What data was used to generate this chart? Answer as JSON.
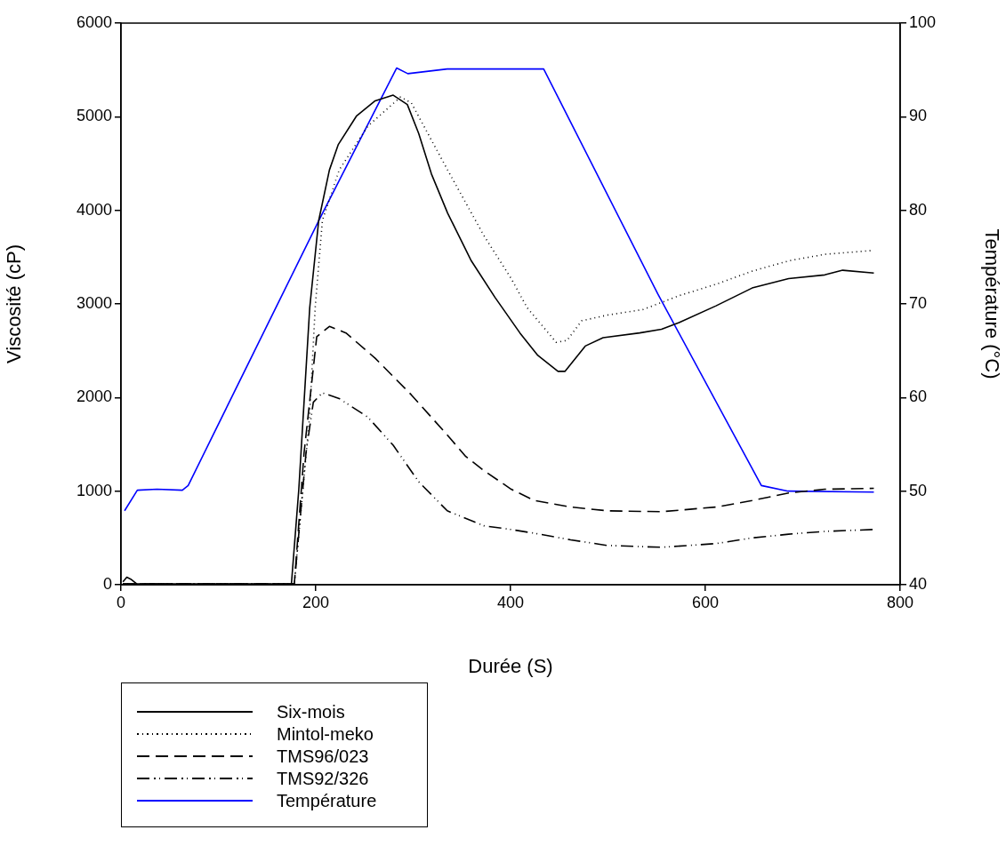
{
  "chart_data": {
    "type": "line",
    "xlabel": "Durée (S)",
    "ylabel": "Viscosité (cP)",
    "y2label": "Température (°C)",
    "xlim": [
      0,
      800
    ],
    "xticks": [
      0,
      200,
      400,
      600,
      800
    ],
    "ylim": [
      0,
      6000
    ],
    "yticks": [
      0,
      1000,
      2000,
      3000,
      4000,
      5000,
      6000
    ],
    "y2lim": [
      40,
      100
    ],
    "y2ticks": [
      40,
      50,
      60,
      70,
      80,
      90,
      100
    ],
    "grid": false,
    "legend": "bottom left",
    "marker": "none",
    "series": [
      {
        "name": "Six-mois",
        "color": "#000000",
        "line_style": "solid",
        "x": [
          2,
          6,
          10,
          16,
          40,
          100,
          175,
          182.6,
          193.8,
          203,
          214,
          223,
          242,
          261,
          279.5,
          294,
          305.7,
          318.7,
          335.4,
          359.7,
          384,
          409.6,
          428,
          448.7,
          456,
          476.7,
          495,
          532.6,
          555,
          573,
          611,
          648,
          685.5,
          722.6,
          741,
          773
        ],
        "values": [
          30,
          80,
          60,
          10,
          10,
          10,
          10,
          1020,
          2960,
          3890,
          4430,
          4700,
          5010,
          5170,
          5230,
          5130,
          4820,
          4390,
          3970,
          3460,
          3070,
          2690,
          2450,
          2280,
          2280,
          2550,
          2640,
          2690,
          2730,
          2800,
          2980,
          3170,
          3270,
          3310,
          3360,
          3330
        ]
      },
      {
        "name": "Mintol-meko",
        "color": "#000000",
        "line_style": "dotted",
        "x": [
          2,
          10,
          40,
          100,
          178,
          193.6,
          199.4,
          206.8,
          224,
          253.5,
          287,
          298,
          335.4,
          372.6,
          400.7,
          417,
          446.8,
          458,
          473,
          499,
          536,
          573.5,
          611,
          648,
          685.5,
          722.5,
          771
        ],
        "values": [
          10,
          10,
          10,
          10,
          10,
          1790,
          2960,
          3890,
          4430,
          4900,
          5210,
          5150,
          4430,
          3730,
          3270,
          2960,
          2590,
          2610,
          2820,
          2880,
          2940,
          3090,
          3210,
          3350,
          3460,
          3530,
          3570
        ]
      },
      {
        "name": "TMS96/023",
        "color": "#000000",
        "line_style": "dashed",
        "x": [
          2,
          10,
          40,
          100,
          178,
          188,
          201,
          214,
          231,
          261,
          298,
          335,
          354,
          372.6,
          400.7,
          424.5,
          461.7,
          499,
          555,
          611,
          648,
          685.5,
          722.5,
          773
        ],
        "values": [
          10,
          10,
          10,
          10,
          10,
          1410,
          2650,
          2760,
          2690,
          2420,
          2030,
          1600,
          1370,
          1220,
          1020,
          900,
          830,
          790,
          780,
          830,
          900,
          980,
          1020,
          1030
        ]
      },
      {
        "name": "TMS92/326",
        "color": "#000000",
        "line_style": "dashdot",
        "x": [
          2,
          10,
          40,
          100,
          178,
          190,
          197.5,
          206.8,
          224,
          253.5,
          279.5,
          305.7,
          335,
          372.6,
          400.7,
          424.5,
          461.7,
          499,
          555,
          611,
          648,
          685.5,
          722.5,
          773
        ],
        "values": [
          10,
          10,
          10,
          10,
          10,
          1410,
          1950,
          2050,
          1990,
          1790,
          1490,
          1100,
          790,
          630,
          590,
          550,
          480,
          420,
          400,
          440,
          500,
          540,
          570,
          590
        ]
      },
      {
        "name": "Température",
        "color": "#0000ff",
        "line_style": "solid",
        "axis": "y2",
        "x": [
          3.7,
          16.8,
          37,
          63,
          69,
          205,
          283,
          294.5,
          335,
          434,
          551,
          657.5,
          685,
          773
        ],
        "values": [
          47.9,
          50.1,
          50.2,
          50.1,
          50.6,
          79.3,
          95.2,
          94.6,
          95.1,
          95.1,
          71.1,
          50.6,
          50.0,
          49.9
        ]
      }
    ]
  }
}
